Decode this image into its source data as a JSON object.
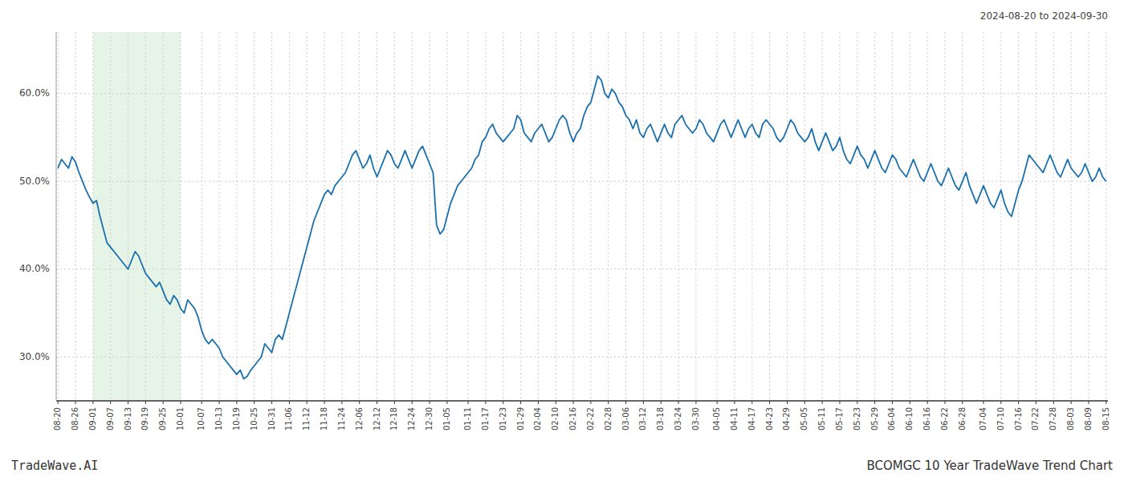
{
  "chart_data": {
    "type": "line",
    "title": "BCOMGC 10 Year TradeWave Trend Chart",
    "subtitle": "2024-08-20 to 2024-09-30",
    "annotations": [
      "TradeWave.AI"
    ],
    "color": "#1a6fad",
    "grid": true,
    "ylim": [
      25,
      67
    ],
    "yticks": [
      {
        "value": 30.0,
        "label": "30.0%"
      },
      {
        "value": 40.0,
        "label": "40.0%"
      },
      {
        "value": 50.0,
        "label": "50.0%"
      },
      {
        "value": 60.0,
        "label": "60.0%"
      }
    ],
    "highlight": {
      "start": "09-01",
      "end": "10-01",
      "color": "#c8e6c9"
    },
    "categories": [
      "08-20",
      null,
      null,
      null,
      null,
      "08-26",
      null,
      null,
      null,
      null,
      "09-01",
      null,
      null,
      null,
      null,
      "09-07",
      null,
      null,
      null,
      null,
      "09-13",
      null,
      null,
      null,
      null,
      "09-19",
      null,
      null,
      null,
      null,
      "09-25",
      null,
      null,
      null,
      null,
      "10-01",
      null,
      null,
      null,
      null,
      null,
      "10-07",
      null,
      null,
      null,
      null,
      "10-13",
      null,
      null,
      null,
      null,
      "10-19",
      null,
      null,
      null,
      null,
      "10-25",
      null,
      null,
      null,
      null,
      "10-31",
      null,
      null,
      null,
      null,
      "11-06",
      null,
      null,
      null,
      null,
      "11-12",
      null,
      null,
      null,
      null,
      "11-18",
      null,
      null,
      null,
      null,
      "11-24",
      null,
      null,
      null,
      null,
      "12-06",
      null,
      null,
      null,
      null,
      "12-12",
      null,
      null,
      null,
      null,
      "12-18",
      null,
      null,
      null,
      null,
      "12-24",
      null,
      null,
      null,
      null,
      "12-30",
      null,
      null,
      null,
      null,
      "01-05",
      null,
      null,
      null,
      null,
      null,
      "01-11",
      null,
      null,
      null,
      null,
      "01-17",
      null,
      null,
      null,
      null,
      "01-23",
      null,
      null,
      null,
      null,
      "01-29",
      null,
      null,
      null,
      null,
      "02-04",
      null,
      null,
      null,
      null,
      "02-10",
      null,
      null,
      null,
      null,
      "02-16",
      null,
      null,
      null,
      null,
      "02-22",
      null,
      null,
      null,
      null,
      "02-28",
      null,
      null,
      null,
      null,
      "03-06",
      null,
      null,
      null,
      null,
      "03-12",
      null,
      null,
      null,
      null,
      "03-18",
      null,
      null,
      null,
      null,
      "03-24",
      null,
      null,
      null,
      null,
      "03-30",
      null,
      null,
      null,
      null,
      null,
      "04-05",
      null,
      null,
      null,
      null,
      "04-11",
      null,
      null,
      null,
      null,
      "04-17",
      null,
      null,
      null,
      null,
      "04-23",
      null,
      null,
      null,
      null,
      "04-29",
      null,
      null,
      null,
      null,
      "05-05",
      null,
      null,
      null,
      null,
      "05-11",
      null,
      null,
      null,
      null,
      "05-17",
      null,
      null,
      null,
      null,
      "05-23",
      null,
      null,
      null,
      null,
      "05-29",
      null,
      null,
      null,
      null,
      "06-04",
      null,
      null,
      null,
      null,
      "06-10",
      null,
      null,
      null,
      null,
      "06-16",
      null,
      null,
      null,
      null,
      "06-22",
      null,
      null,
      null,
      null,
      "06-28",
      null,
      null,
      null,
      null,
      null,
      "07-04",
      null,
      null,
      null,
      null,
      "07-10",
      null,
      null,
      null,
      null,
      "07-16",
      null,
      null,
      null,
      null,
      "07-22",
      null,
      null,
      null,
      null,
      "07-28",
      null,
      null,
      null,
      null,
      "08-03",
      null,
      null,
      null,
      null,
      "08-09",
      null,
      null,
      null,
      null,
      "08-15"
    ],
    "values": [
      51.5,
      52.5,
      52.0,
      51.5,
      52.8,
      52.2,
      51.0,
      50.0,
      49.0,
      48.2,
      47.5,
      47.8,
      46.0,
      44.5,
      43.0,
      42.5,
      42.0,
      41.5,
      41.0,
      40.5,
      40.0,
      41.0,
      42.0,
      41.5,
      40.5,
      39.5,
      39.0,
      38.5,
      38.0,
      38.5,
      37.5,
      36.5,
      36.0,
      37.0,
      36.5,
      35.5,
      35.0,
      36.5,
      36.0,
      35.5,
      34.5,
      33.0,
      32.0,
      31.5,
      32.0,
      31.5,
      31.0,
      30.0,
      29.5,
      29.0,
      28.5,
      28.0,
      28.5,
      27.5,
      27.8,
      28.5,
      29.0,
      29.5,
      30.0,
      31.5,
      31.0,
      30.5,
      32.0,
      32.5,
      32.0,
      33.5,
      35.0,
      36.5,
      38.0,
      39.5,
      41.0,
      42.5,
      44.0,
      45.5,
      46.5,
      47.5,
      48.5,
      49.0,
      48.5,
      49.5,
      50.0,
      50.5,
      51.0,
      52.0,
      53.0,
      53.5,
      52.5,
      51.5,
      52.0,
      53.0,
      51.5,
      50.5,
      51.5,
      52.5,
      53.5,
      53.0,
      52.0,
      51.5,
      52.5,
      53.5,
      52.5,
      51.5,
      52.5,
      53.5,
      54.0,
      53.0,
      52.0,
      51.0,
      45.0,
      44.0,
      44.5,
      46.0,
      47.5,
      48.5,
      49.5,
      50.0,
      50.5,
      51.0,
      51.5,
      52.5,
      53.0,
      54.5,
      55.0,
      56.0,
      56.5,
      55.5,
      55.0,
      54.5,
      55.0,
      55.5,
      56.0,
      57.5,
      57.0,
      55.5,
      55.0,
      54.5,
      55.5,
      56.0,
      56.5,
      55.5,
      54.5,
      55.0,
      56.0,
      57.0,
      57.5,
      57.0,
      55.5,
      54.5,
      55.5,
      56.0,
      57.5,
      58.5,
      59.0,
      60.5,
      62.0,
      61.5,
      60.0,
      59.5,
      60.5,
      60.0,
      59.0,
      58.5,
      57.5,
      57.0,
      56.0,
      57.0,
      55.5,
      55.0,
      56.0,
      56.5,
      55.5,
      54.5,
      55.5,
      56.5,
      55.5,
      55.0,
      56.5,
      57.0,
      57.5,
      56.5,
      56.0,
      55.5,
      56.0,
      57.0,
      56.5,
      55.5,
      55.0,
      54.5,
      55.5,
      56.5,
      57.0,
      56.0,
      55.0,
      56.0,
      57.0,
      56.0,
      55.0,
      56.0,
      56.5,
      55.5,
      55.0,
      56.5,
      57.0,
      56.5,
      56.0,
      55.0,
      54.5,
      55.0,
      56.0,
      57.0,
      56.5,
      55.5,
      55.0,
      54.5,
      55.0,
      56.0,
      54.5,
      53.5,
      54.5,
      55.5,
      54.5,
      53.5,
      54.0,
      55.0,
      53.5,
      52.5,
      52.0,
      53.0,
      54.0,
      53.0,
      52.5,
      51.5,
      52.5,
      53.5,
      52.5,
      51.5,
      51.0,
      52.0,
      53.0,
      52.5,
      51.5,
      51.0,
      50.5,
      51.5,
      52.5,
      51.5,
      50.5,
      50.0,
      51.0,
      52.0,
      51.0,
      50.0,
      49.5,
      50.5,
      51.5,
      50.5,
      49.5,
      49.0,
      50.0,
      51.0,
      49.5,
      48.5,
      47.5,
      48.5,
      49.5,
      48.5,
      47.5,
      47.0,
      48.0,
      49.0,
      47.5,
      46.5,
      46.0,
      47.5,
      49.0,
      50.0,
      51.5,
      53.0,
      52.5,
      52.0,
      51.5,
      51.0,
      52.0,
      53.0,
      52.0,
      51.0,
      50.5,
      51.5,
      52.5,
      51.5,
      51.0,
      50.5,
      51.0,
      52.0,
      51.0,
      50.0,
      50.5,
      51.5,
      50.5,
      50.0
    ]
  }
}
